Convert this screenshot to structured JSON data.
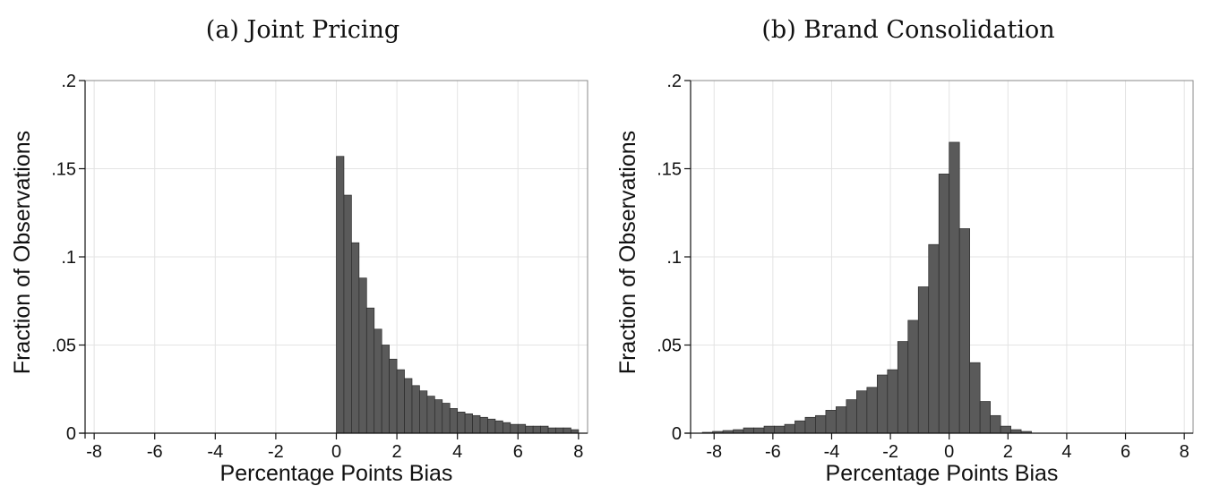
{
  "panels": [
    {
      "title": "(a) Joint Pricing",
      "chart_data": {
        "type": "bar",
        "subtype": "histogram",
        "title": "(a) Joint Pricing",
        "xlabel": "Percentage Points Bias",
        "ylabel": "Fraction of Observations",
        "xlim": [
          -8.3,
          8.3
        ],
        "ylim": [
          0,
          0.2
        ],
        "xticks": [
          "-8",
          "-6",
          "-4",
          "-2",
          "0",
          "2",
          "4",
          "6",
          "8"
        ],
        "yticks": [
          "0",
          ".05",
          ".1",
          ".15",
          ".2"
        ],
        "grid": true,
        "bar_color": "#5a5a5a",
        "bin_width": 0.25,
        "bin_starts": [
          0,
          0.25,
          0.5,
          0.75,
          1.0,
          1.25,
          1.5,
          1.75,
          2.0,
          2.25,
          2.5,
          2.75,
          3.0,
          3.25,
          3.5,
          3.75,
          4.0,
          4.25,
          4.5,
          4.75,
          5.0,
          5.25,
          5.5,
          5.75,
          6.0,
          6.25,
          6.5,
          6.75,
          7.0,
          7.25,
          7.5,
          7.75
        ],
        "values": [
          0.157,
          0.135,
          0.108,
          0.088,
          0.071,
          0.059,
          0.05,
          0.042,
          0.036,
          0.031,
          0.027,
          0.024,
          0.021,
          0.019,
          0.017,
          0.014,
          0.012,
          0.011,
          0.01,
          0.009,
          0.008,
          0.007,
          0.006,
          0.005,
          0.005,
          0.004,
          0.004,
          0.004,
          0.003,
          0.003,
          0.003,
          0.002
        ]
      }
    },
    {
      "title": "(b) Brand Consolidation",
      "chart_data": {
        "type": "bar",
        "subtype": "histogram",
        "title": "(b) Brand Consolidation",
        "xlabel": "Percentage Points Bias",
        "ylabel": "Fraction of Observations",
        "xlim": [
          -8.8,
          8.3
        ],
        "ylim": [
          0,
          0.2
        ],
        "xticks": [
          "-8",
          "-6",
          "-4",
          "-2",
          "0",
          "2",
          "4",
          "6",
          "8"
        ],
        "yticks": [
          "0",
          ".05",
          ".1",
          ".15",
          ".2"
        ],
        "grid": true,
        "bar_color": "#5a5a5a",
        "bin_width": 0.35,
        "bin_starts": [
          -8.4,
          -8.05,
          -7.7,
          -7.35,
          -7.0,
          -6.65,
          -6.3,
          -5.95,
          -5.6,
          -5.25,
          -4.9,
          -4.55,
          -4.2,
          -3.85,
          -3.5,
          -3.15,
          -2.8,
          -2.45,
          -2.1,
          -1.75,
          -1.4,
          -1.05,
          -0.7,
          -0.35,
          0.0,
          0.35,
          0.7,
          1.05,
          1.4,
          1.75,
          2.1,
          2.45
        ],
        "values": [
          0.0005,
          0.001,
          0.0015,
          0.002,
          0.003,
          0.003,
          0.004,
          0.004,
          0.005,
          0.007,
          0.009,
          0.01,
          0.013,
          0.015,
          0.019,
          0.024,
          0.026,
          0.033,
          0.036,
          0.052,
          0.064,
          0.083,
          0.107,
          0.147,
          0.165,
          0.116,
          0.04,
          0.018,
          0.01,
          0.004,
          0.002,
          0.001
        ]
      }
    }
  ]
}
